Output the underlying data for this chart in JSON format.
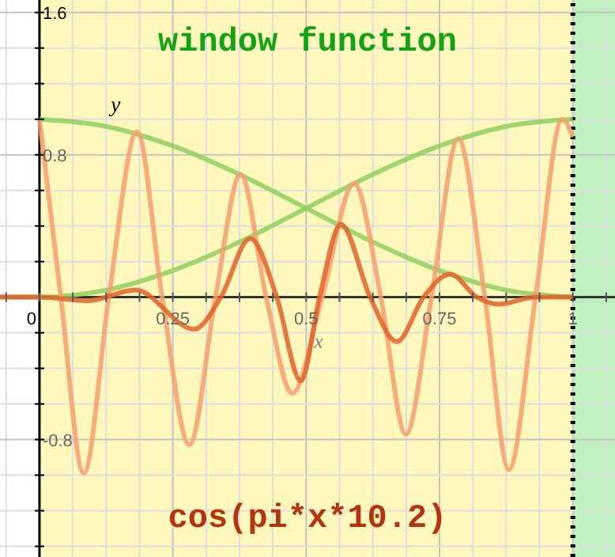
{
  "chart_data": {
    "type": "line",
    "title": "window function",
    "xlabel": "x",
    "ylabel": "y",
    "annotations": [
      "cos(pi*x*10.2)"
    ],
    "xlim": [
      -0.074,
      1.079
    ],
    "ylim": [
      -1.46,
      1.67
    ],
    "xticks": [
      {
        "value": -0.0625,
        "label": null
      },
      {
        "value": 0,
        "label": "0"
      },
      {
        "value": 0.0625,
        "label": null
      },
      {
        "value": 0.125,
        "label": null
      },
      {
        "value": 0.1875,
        "label": null
      },
      {
        "value": 0.25,
        "label": "0.25"
      },
      {
        "value": 0.3125,
        "label": null
      },
      {
        "value": 0.375,
        "label": null
      },
      {
        "value": 0.4375,
        "label": null
      },
      {
        "value": 0.5,
        "label": "0.5"
      },
      {
        "value": 0.5625,
        "label": null
      },
      {
        "value": 0.625,
        "label": null
      },
      {
        "value": 0.6875,
        "label": null
      },
      {
        "value": 0.75,
        "label": "0.75"
      },
      {
        "value": 0.8125,
        "label": null
      },
      {
        "value": 0.875,
        "label": null
      },
      {
        "value": 0.9375,
        "label": null
      },
      {
        "value": 1,
        "label": "1"
      },
      {
        "value": 1.0625,
        "label": null
      }
    ],
    "yticks": [
      {
        "value": -1.4,
        "label": null
      },
      {
        "value": -1.2,
        "label": null
      },
      {
        "value": -1,
        "label": null
      },
      {
        "value": -0.8,
        "label": "-0.8"
      },
      {
        "value": -0.6,
        "label": null
      },
      {
        "value": -0.4,
        "label": null
      },
      {
        "value": -0.2,
        "label": null
      },
      {
        "value": 0.2,
        "label": null
      },
      {
        "value": 0.4,
        "label": null
      },
      {
        "value": 0.6,
        "label": null
      },
      {
        "value": 0.8,
        "label": "0.8"
      },
      {
        "value": 1,
        "label": null
      },
      {
        "value": 1.2,
        "label": null
      },
      {
        "value": 1.4,
        "label": null
      },
      {
        "value": 1.6,
        "label": "1.6"
      }
    ],
    "grid": true,
    "marker": "none",
    "bands": [
      {
        "axis": "x",
        "from": 0,
        "to": 1,
        "color": "#fff8bc"
      },
      {
        "axis": "x",
        "from": 1,
        "to": 1.079,
        "color": "#bff0bf"
      }
    ],
    "ref_lines": [
      {
        "axis": "x",
        "value": 1,
        "color": "#000000",
        "line_style": "dotted"
      }
    ],
    "series": [
      {
        "color": "#8fd060",
        "x": [
          0,
          0.125,
          0.25,
          0.375,
          0.5,
          0.625,
          0.75,
          0.875,
          1
        ],
        "values": [
          1,
          0.96,
          0.85,
          0.69,
          0.5,
          0.31,
          0.15,
          0.04,
          0
        ]
      },
      {
        "color": "#8fd060",
        "x": [
          -0.074,
          0,
          0.125,
          0.25,
          0.375,
          0.5,
          0.625,
          0.75,
          0.875,
          1
        ],
        "values": [
          0,
          0,
          0.04,
          0.15,
          0.31,
          0.5,
          0.69,
          0.85,
          0.96,
          1
        ]
      },
      {
        "color": "#f4a070",
        "x": [
          0,
          0.04,
          0.083,
          0.13,
          0.183,
          0.23,
          0.281,
          0.33,
          0.377,
          0.425,
          0.474,
          0.53,
          0.59,
          0.64,
          0.687,
          0.735,
          0.785,
          0.835,
          0.88,
          0.93,
          0.98,
          1
        ],
        "values": [
          1,
          0,
          -0.99,
          0,
          0.93,
          0,
          -0.83,
          0,
          0.69,
          0,
          -0.54,
          0,
          0.64,
          0,
          -0.77,
          0,
          0.89,
          0,
          -0.97,
          0,
          1,
          0.9
        ]
      },
      {
        "color": "#e0642a",
        "x": [
          -0.074,
          0,
          0.09,
          0.18,
          0.29,
          0.34,
          0.395,
          0.445,
          0.49,
          0.525,
          0.565,
          0.62,
          0.67,
          0.72,
          0.77,
          0.82,
          0.86,
          0.93,
          1
        ],
        "values": [
          0,
          0,
          -0.02,
          0.04,
          -0.18,
          0,
          0.33,
          0,
          -0.47,
          0,
          0.41,
          0,
          -0.25,
          0,
          0.13,
          0,
          -0.04,
          0,
          0
        ]
      }
    ]
  }
}
